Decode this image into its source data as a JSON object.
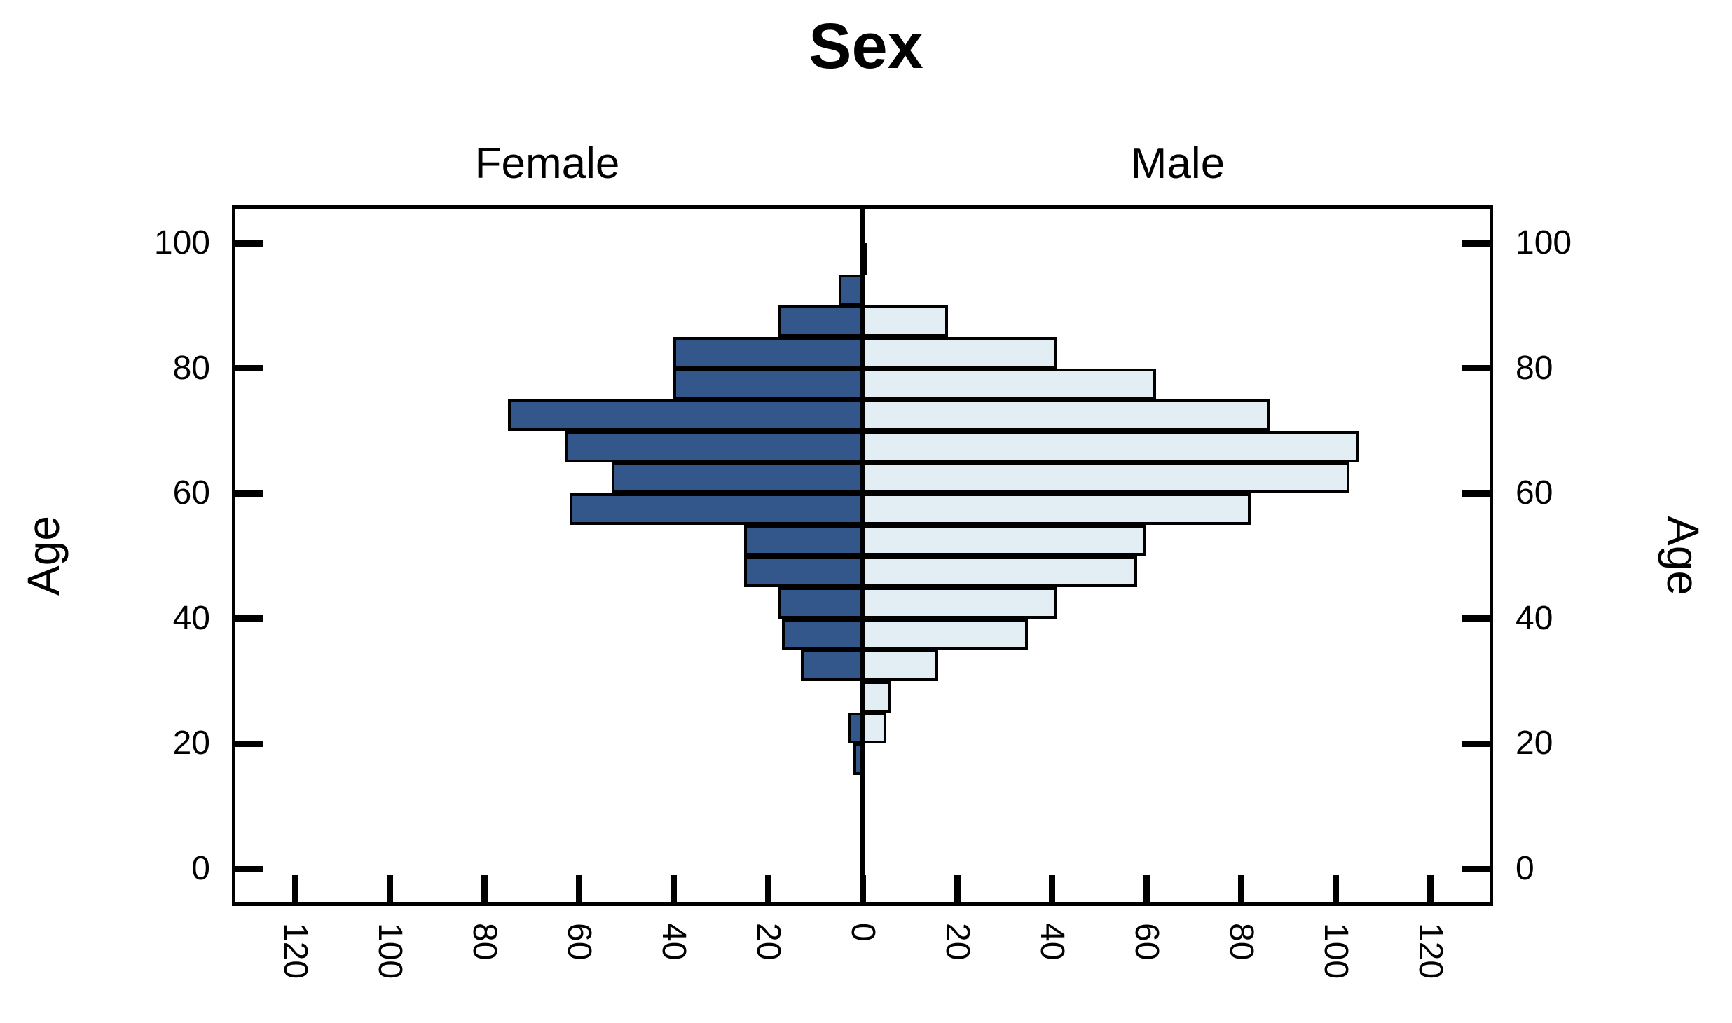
{
  "title": "Sex",
  "panel_headers": {
    "female": "Female",
    "male": "Male"
  },
  "axes": {
    "age_label_left": "Age",
    "age_label_right": "Age",
    "age_ticks": [
      0,
      20,
      40,
      60,
      80,
      100
    ],
    "value_tick_step": 20,
    "value_tick_labels": [
      "120",
      "100",
      "80",
      "60",
      "40",
      "20",
      "0",
      "20",
      "40",
      "60",
      "80",
      "100",
      "120"
    ],
    "value_tick_units": [
      -120,
      -100,
      -80,
      -60,
      -40,
      -20,
      0,
      20,
      40,
      60,
      80,
      100,
      120
    ]
  },
  "colors": {
    "female_fill": "#33578A",
    "male_fill": "#E3EEF4",
    "stroke": "#000000",
    "background": "#FFFFFF"
  },
  "chart_data": {
    "type": "bar",
    "subtype": "population-pyramid",
    "title": "Sex",
    "orientation": "horizontal",
    "left_series_name": "Female",
    "right_series_name": "Male",
    "age_axis_label": "Age",
    "ylim": [
      0,
      100
    ],
    "value_axis_max_per_side": 133,
    "grid": false,
    "legend_position": "none",
    "bins": [
      {
        "age_range": [
          15,
          20
        ],
        "female": 2,
        "male": 0
      },
      {
        "age_range": [
          20,
          25
        ],
        "female": 3,
        "male": 5
      },
      {
        "age_range": [
          25,
          30
        ],
        "female": 0,
        "male": 6
      },
      {
        "age_range": [
          30,
          35
        ],
        "female": 13,
        "male": 16
      },
      {
        "age_range": [
          35,
          40
        ],
        "female": 17,
        "male": 35
      },
      {
        "age_range": [
          40,
          45
        ],
        "female": 18,
        "male": 41
      },
      {
        "age_range": [
          45,
          50
        ],
        "female": 25,
        "male": 58
      },
      {
        "age_range": [
          50,
          55
        ],
        "female": 25,
        "male": 60
      },
      {
        "age_range": [
          55,
          60
        ],
        "female": 62,
        "male": 82
      },
      {
        "age_range": [
          60,
          65
        ],
        "female": 53,
        "male": 103
      },
      {
        "age_range": [
          65,
          70
        ],
        "female": 63,
        "male": 105
      },
      {
        "age_range": [
          70,
          75
        ],
        "female": 75,
        "male": 86
      },
      {
        "age_range": [
          75,
          80
        ],
        "female": 40,
        "male": 62
      },
      {
        "age_range": [
          80,
          85
        ],
        "female": 40,
        "male": 41
      },
      {
        "age_range": [
          85,
          90
        ],
        "female": 18,
        "male": 18
      },
      {
        "age_range": [
          90,
          95
        ],
        "female": 5,
        "male": 0
      },
      {
        "age_range": [
          95,
          100
        ],
        "female": 0,
        "male": 1
      }
    ]
  }
}
